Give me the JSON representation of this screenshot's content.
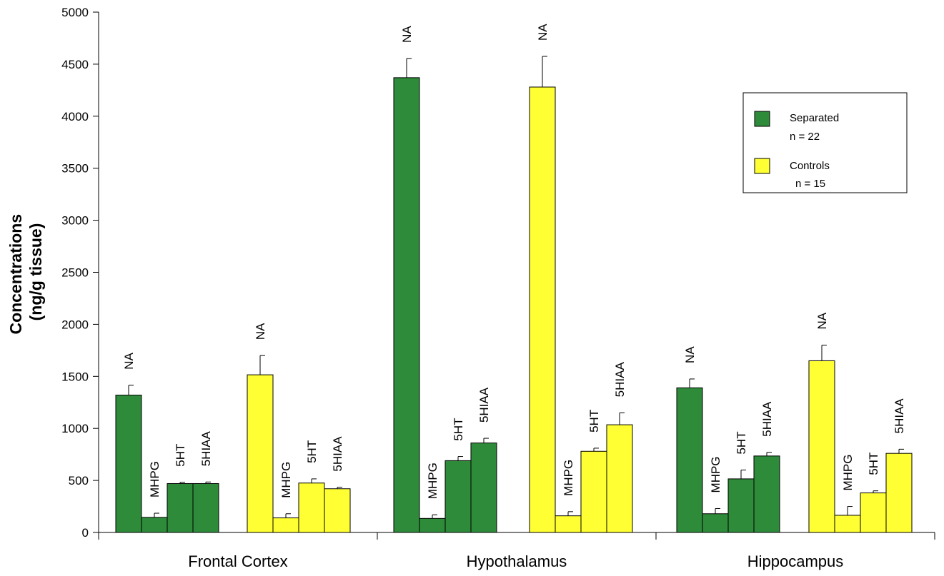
{
  "chart_data": {
    "type": "bar",
    "ylabel_lines": [
      "Concentrations",
      "(ng/g tissue)"
    ],
    "ylim": [
      0,
      5000
    ],
    "yticks": [
      0,
      500,
      1000,
      1500,
      2000,
      2500,
      3000,
      3500,
      4000,
      4500,
      5000
    ],
    "categories": [
      "Frontal Cortex",
      "Hypothalamus",
      "Hippocampus"
    ],
    "measures": [
      "NA",
      "MHPG",
      "5HT",
      "5HIAA"
    ],
    "series": [
      {
        "name": "Separated",
        "n_label": "n = 22",
        "color": "#2e8b3a",
        "values": [
          [
            1320,
            145,
            470,
            470
          ],
          [
            4370,
            135,
            690,
            860
          ],
          [
            1390,
            180,
            515,
            735
          ]
        ],
        "errors": [
          [
            95,
            40,
            12,
            15
          ],
          [
            185,
            35,
            40,
            45
          ],
          [
            85,
            50,
            85,
            35
          ]
        ]
      },
      {
        "name": "Controls",
        "n_label": "n = 15",
        "color": "#ffff33",
        "values": [
          [
            1515,
            140,
            475,
            420
          ],
          [
            4280,
            160,
            780,
            1035
          ],
          [
            1650,
            165,
            380,
            760
          ]
        ],
        "errors": [
          [
            185,
            40,
            40,
            15
          ],
          [
            295,
            40,
            30,
            115
          ],
          [
            150,
            85,
            20,
            40
          ]
        ]
      }
    ],
    "legend_position": "top-right",
    "grid": false
  }
}
